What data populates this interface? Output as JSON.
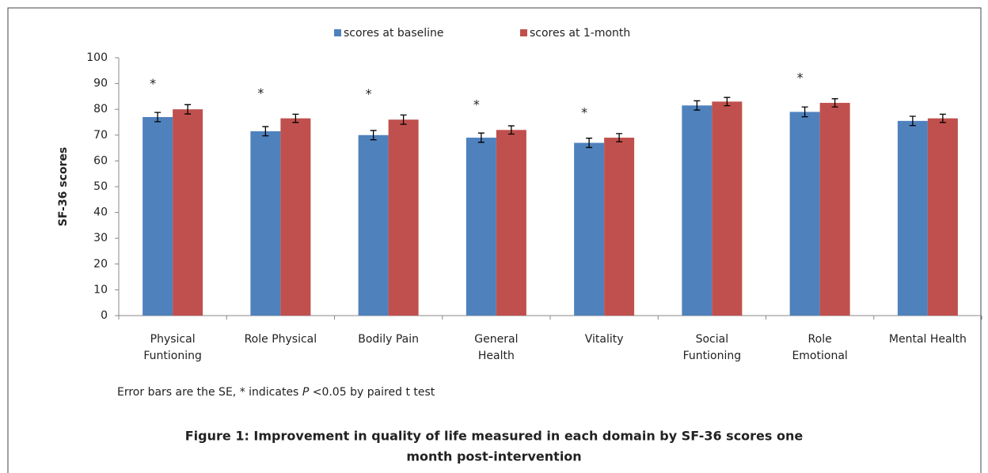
{
  "chart_data": {
    "type": "bar",
    "categories": [
      [
        "Physical",
        "Funtioning"
      ],
      [
        "Role Physical"
      ],
      [
        "Bodily Pain"
      ],
      [
        "General",
        "Health"
      ],
      [
        "Vitality"
      ],
      [
        "Social",
        "Funtioning"
      ],
      [
        "Role",
        "Emotional"
      ],
      [
        "Mental Health"
      ]
    ],
    "series": [
      {
        "name": "scores at baseline",
        "color": "#4f81bd",
        "values": [
          77,
          71.5,
          70,
          69,
          67,
          81.5,
          79,
          75.5
        ],
        "errors": [
          1.8,
          1.8,
          1.8,
          1.8,
          1.8,
          1.8,
          1.9,
          1.8
        ]
      },
      {
        "name": "scores at 1-month",
        "color": "#c0504d",
        "values": [
          80,
          76.5,
          76,
          72,
          69,
          83,
          82.5,
          76.5
        ],
        "errors": [
          1.8,
          1.6,
          1.8,
          1.6,
          1.6,
          1.6,
          1.6,
          1.6
        ]
      }
    ],
    "markers": [
      "*",
      "*",
      "*",
      "*",
      "*",
      null,
      "*",
      null
    ],
    "ylabel": "SF-36 scores",
    "ylim": [
      0,
      100
    ],
    "yticks": [
      0,
      10,
      20,
      30,
      40,
      50,
      60,
      70,
      80,
      90,
      100
    ],
    "note": [
      "Error bars are the SE, * indicates ",
      "P",
      " <0.05 by paired t test"
    ],
    "caption": [
      "Figure 1: Improvement in quality of life measured in each domain by SF-36 scores one",
      "month post-intervention"
    ]
  }
}
